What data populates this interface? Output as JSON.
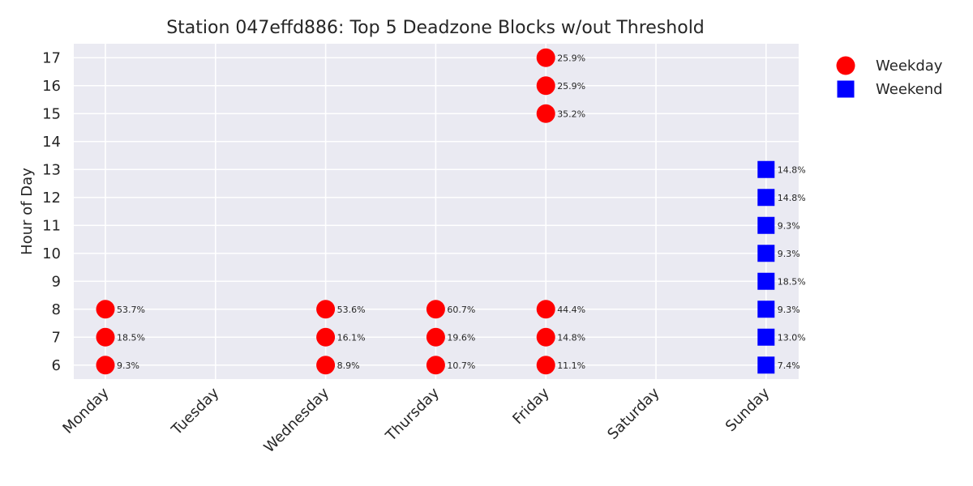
{
  "chart_data": {
    "type": "scatter",
    "title": "Station 047effd886: Top 5 Deadzone Blocks w/out Threshold",
    "xlabel": "",
    "ylabel": "Hour of Day",
    "categories": [
      "Monday",
      "Tuesday",
      "Wednesday",
      "Thursday",
      "Friday",
      "Saturday",
      "Sunday"
    ],
    "yticks": [
      6,
      7,
      8,
      9,
      10,
      11,
      12,
      13,
      14,
      15,
      16,
      17
    ],
    "ylim": [
      5.5,
      17.5
    ],
    "grid": true,
    "legend_position": "outside-top-right",
    "series": [
      {
        "name": "Weekday",
        "marker": "circle",
        "color": "#ff0000",
        "points": [
          {
            "day": "Monday",
            "hour": 6,
            "label": "9.3%"
          },
          {
            "day": "Monday",
            "hour": 7,
            "label": "18.5%"
          },
          {
            "day": "Monday",
            "hour": 8,
            "label": "53.7%"
          },
          {
            "day": "Wednesday",
            "hour": 6,
            "label": "8.9%"
          },
          {
            "day": "Wednesday",
            "hour": 7,
            "label": "16.1%"
          },
          {
            "day": "Wednesday",
            "hour": 8,
            "label": "53.6%"
          },
          {
            "day": "Thursday",
            "hour": 6,
            "label": "10.7%"
          },
          {
            "day": "Thursday",
            "hour": 7,
            "label": "19.6%"
          },
          {
            "day": "Thursday",
            "hour": 8,
            "label": "60.7%"
          },
          {
            "day": "Friday",
            "hour": 6,
            "label": "11.1%"
          },
          {
            "day": "Friday",
            "hour": 7,
            "label": "14.8%"
          },
          {
            "day": "Friday",
            "hour": 8,
            "label": "44.4%"
          },
          {
            "day": "Friday",
            "hour": 15,
            "label": "35.2%"
          },
          {
            "day": "Friday",
            "hour": 16,
            "label": "25.9%"
          },
          {
            "day": "Friday",
            "hour": 17,
            "label": "25.9%"
          }
        ]
      },
      {
        "name": "Weekend",
        "marker": "square",
        "color": "#0000ff",
        "points": [
          {
            "day": "Sunday",
            "hour": 6,
            "label": "7.4%"
          },
          {
            "day": "Sunday",
            "hour": 7,
            "label": "13.0%"
          },
          {
            "day": "Sunday",
            "hour": 8,
            "label": "9.3%"
          },
          {
            "day": "Sunday",
            "hour": 9,
            "label": "18.5%"
          },
          {
            "day": "Sunday",
            "hour": 10,
            "label": "9.3%"
          },
          {
            "day": "Sunday",
            "hour": 11,
            "label": "9.3%"
          },
          {
            "day": "Sunday",
            "hour": 12,
            "label": "14.8%"
          },
          {
            "day": "Sunday",
            "hour": 13,
            "label": "14.8%"
          }
        ]
      }
    ],
    "colors": {
      "plot_background": "#eaeaf2",
      "grid": "#ffffff",
      "text": "#262626"
    }
  }
}
